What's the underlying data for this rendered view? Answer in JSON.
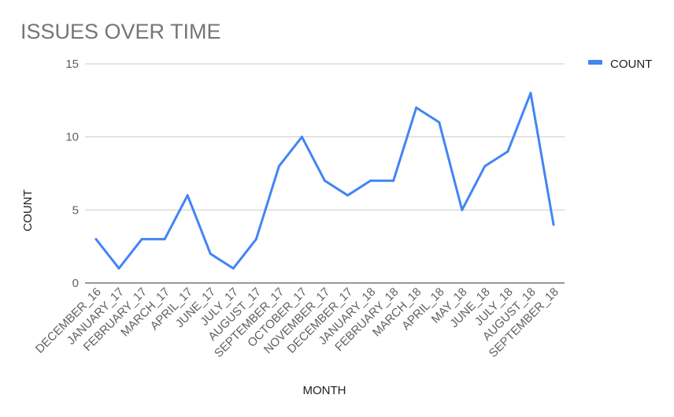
{
  "colors": {
    "series": "#4285f4",
    "grid": "#cccccc",
    "baseline": "#333333"
  },
  "chart_data": {
    "type": "line",
    "title": "ISSUES OVER TIME",
    "xlabel": "MONTH",
    "ylabel": "COUNT",
    "ylim": [
      0,
      15
    ],
    "yticks": [
      0,
      5,
      10,
      15
    ],
    "grid": true,
    "legend_position": "top-right",
    "categories": [
      "DECEMBER_16",
      "JANUARY_17",
      "FEBRUARY_17",
      "MARCH_17",
      "APRIL_17",
      "JUNE_17",
      "JULY_17",
      "AUGUST_17",
      "SEPTEMBER_17",
      "OCTOBER_17",
      "NOVEMBER_17",
      "DECEMBER_17",
      "JANUARY_18",
      "FEBRUARY_18",
      "MARCH_18",
      "APRIL_18",
      "MAY_18",
      "JUNE_18",
      "JULY_18",
      "AUGUST_18",
      "SEPTEMBER_18"
    ],
    "series": [
      {
        "name": "COUNT",
        "values": [
          3,
          1,
          3,
          3,
          6,
          2,
          1,
          3,
          8,
          10,
          7,
          6,
          7,
          7,
          12,
          11,
          5,
          8,
          9,
          13,
          4
        ]
      }
    ]
  }
}
